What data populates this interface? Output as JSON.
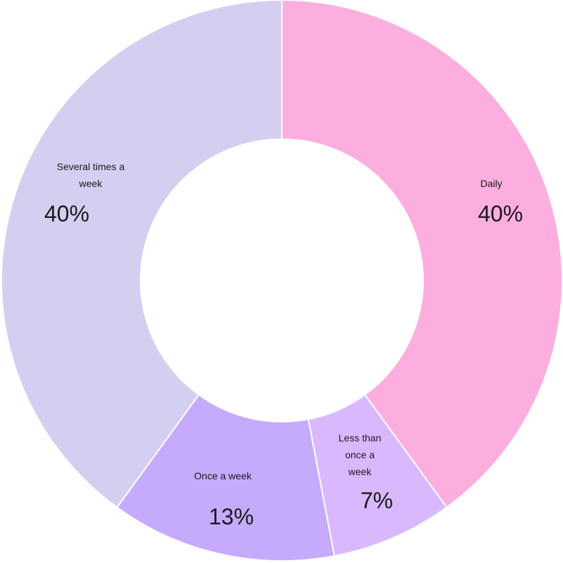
{
  "chart_data": {
    "type": "pie",
    "variant": "donut",
    "title": "",
    "categories": [
      "Daily",
      "Less than once a week",
      "Once a week",
      "Several times a week"
    ],
    "values": [
      40,
      7,
      13,
      40
    ],
    "value_labels": [
      "40%",
      "7%",
      "13%",
      "40%"
    ],
    "colors": [
      "#fcaedf",
      "#d9b8fe",
      "#c5aafe",
      "#d4cef1"
    ],
    "legend": "none",
    "start_angle_deg": 0,
    "direction": "clockwise"
  }
}
